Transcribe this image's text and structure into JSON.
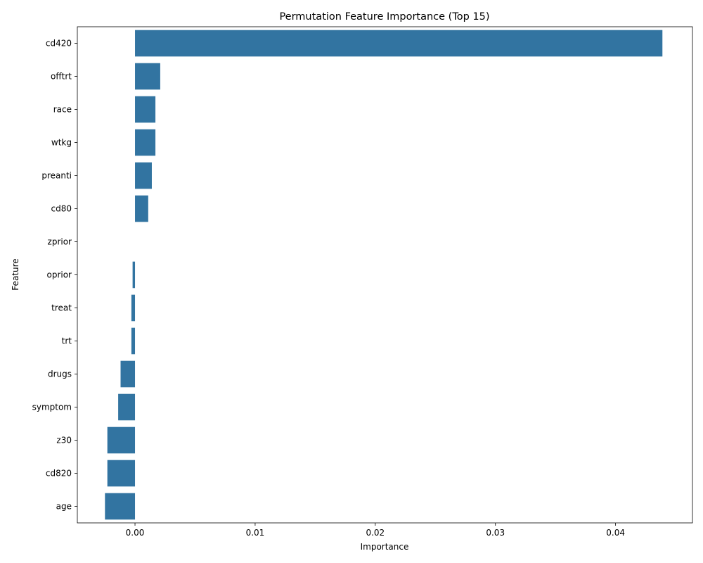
{
  "chart_data": {
    "type": "bar",
    "orientation": "horizontal",
    "title": "Permutation Feature Importance (Top 15)",
    "xlabel": "Importance",
    "ylabel": "Feature",
    "xlim": [
      -0.0048,
      0.0464
    ],
    "xticks": [
      0.0,
      0.01,
      0.02,
      0.03,
      0.04
    ],
    "xtick_labels": [
      "0.00",
      "0.01",
      "0.02",
      "0.03",
      "0.04"
    ],
    "categories": [
      "cd420",
      "offtrt",
      "race",
      "wtkg",
      "preanti",
      "cd80",
      "zprior",
      "oprior",
      "treat",
      "trt",
      "drugs",
      "symptom",
      "z30",
      "cd820",
      "age"
    ],
    "values": [
      0.0439,
      0.0021,
      0.0017,
      0.0017,
      0.0014,
      0.0011,
      0.0,
      -0.0002,
      -0.0003,
      -0.0003,
      -0.0012,
      -0.0014,
      -0.0023,
      -0.0023,
      -0.0025
    ],
    "bar_color": "#3274a1",
    "grid": false,
    "legend": "none"
  }
}
